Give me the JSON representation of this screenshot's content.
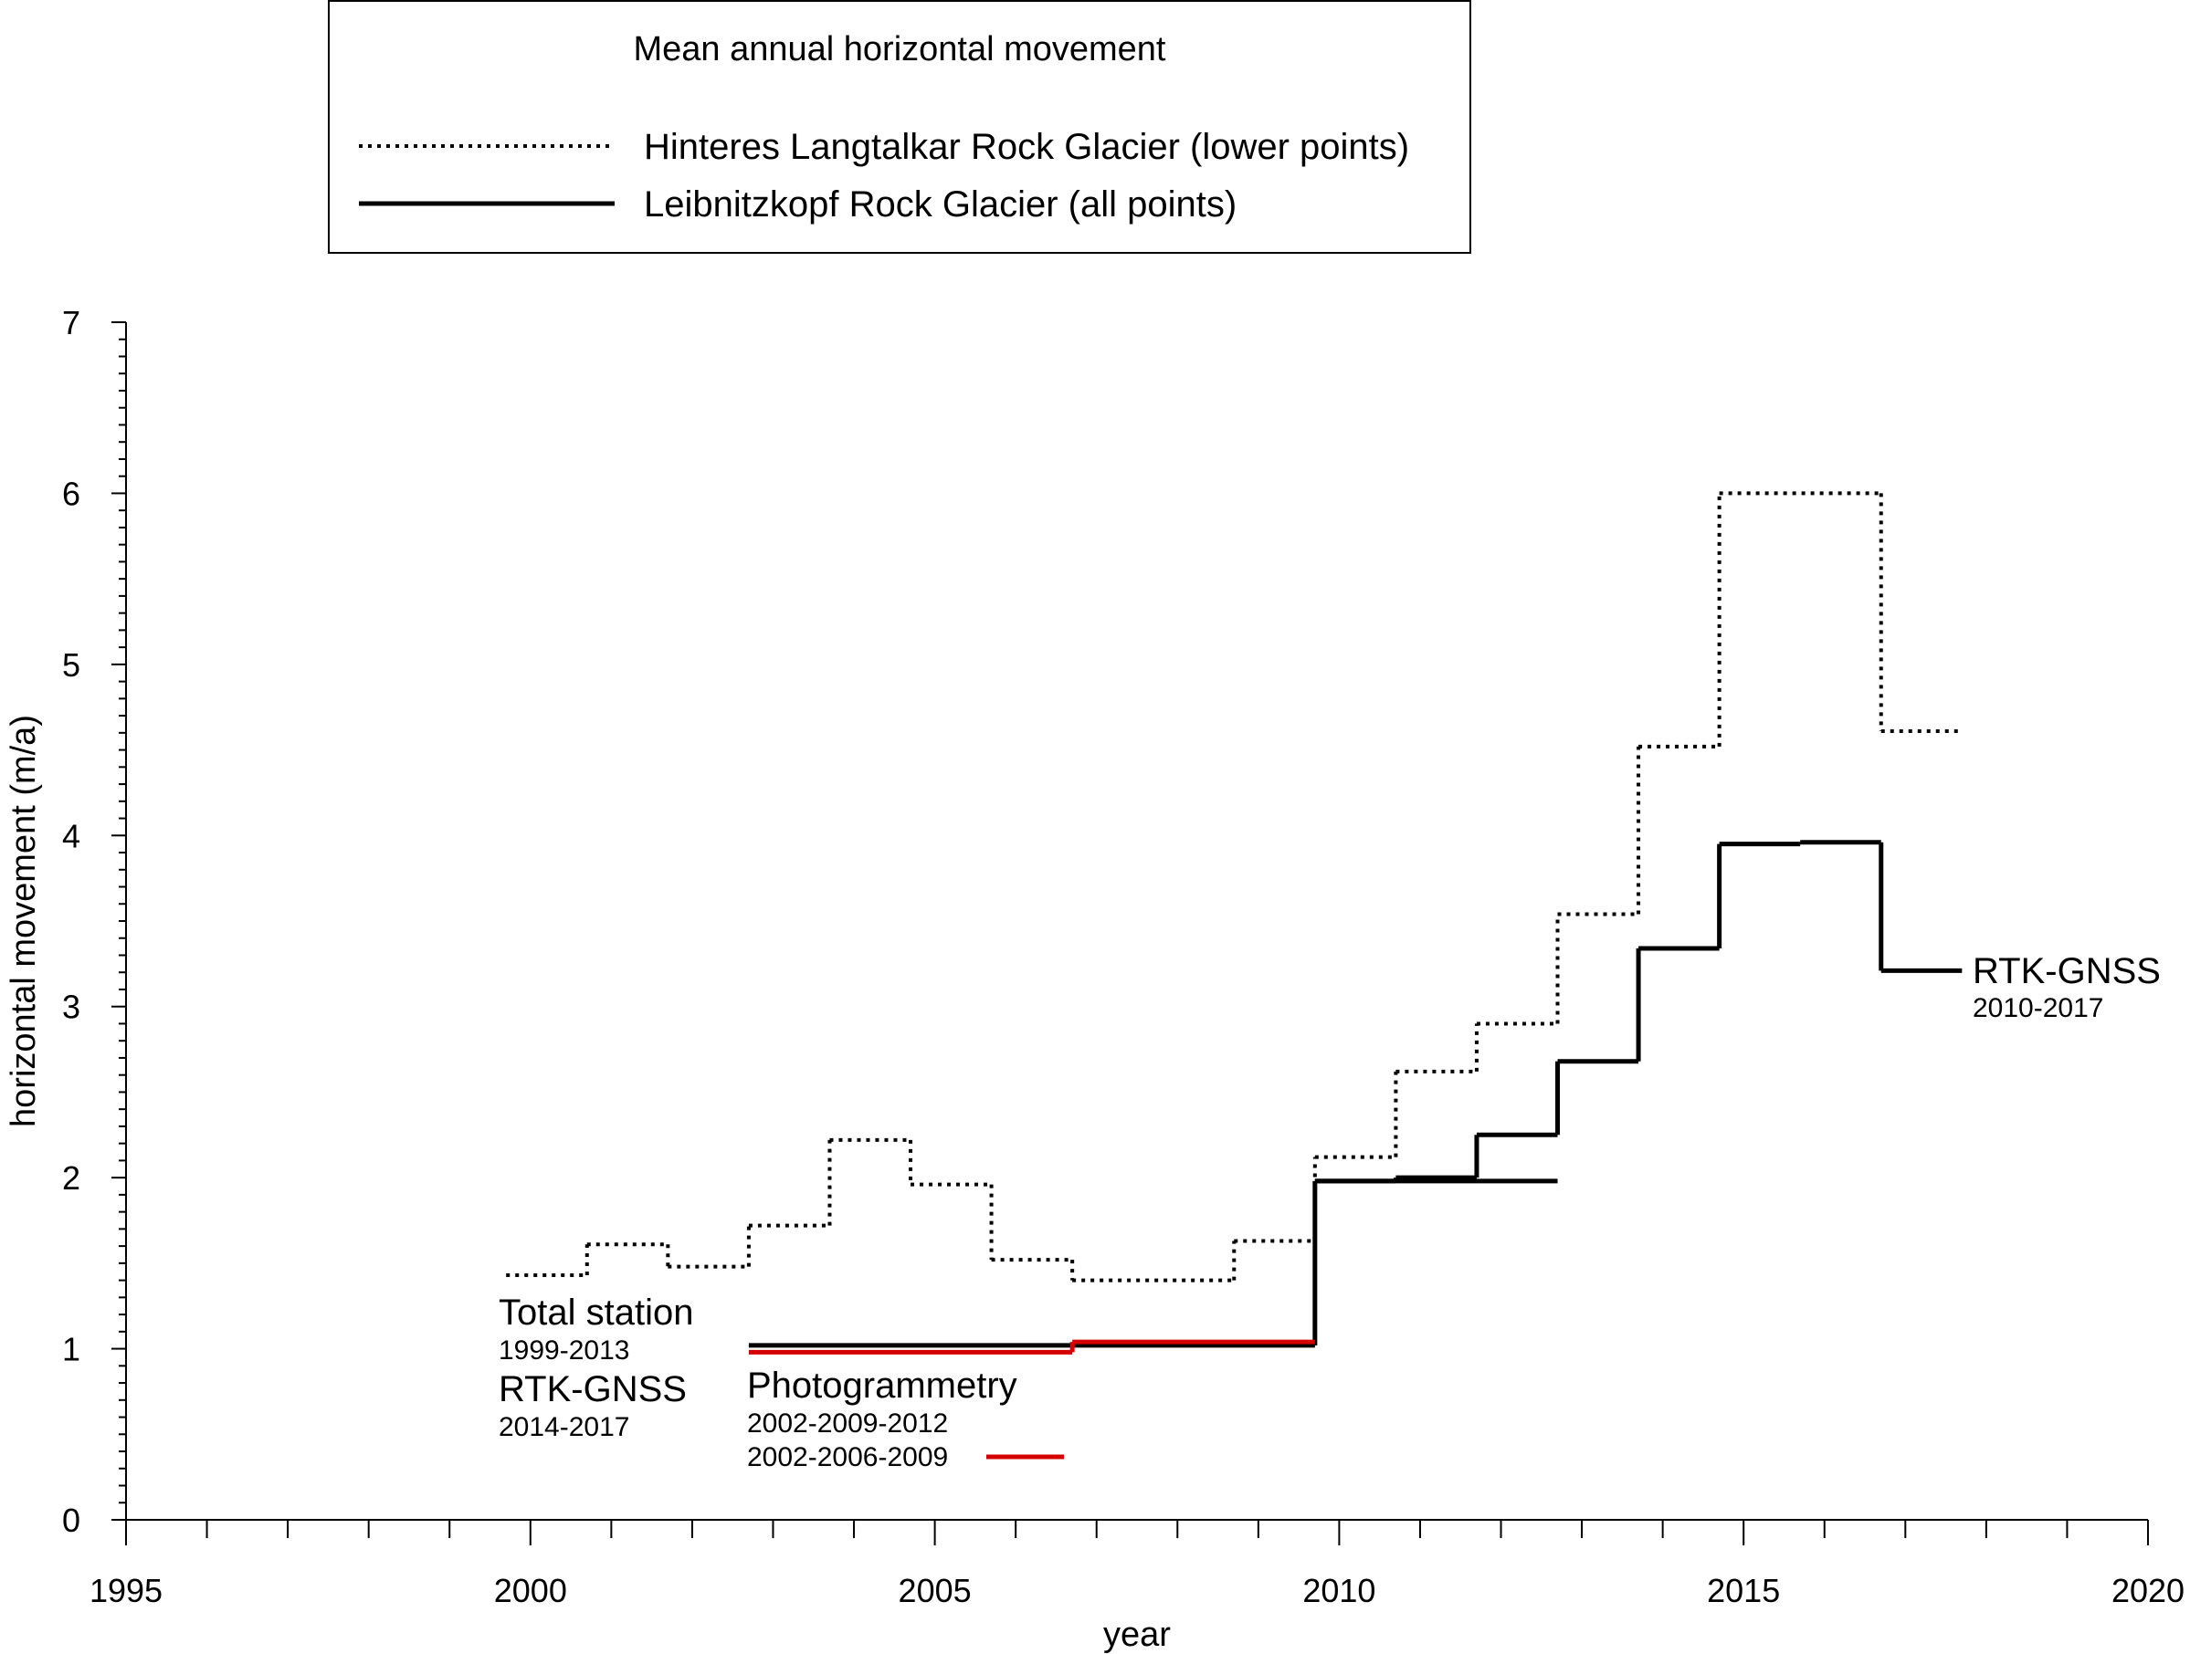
{
  "chart_data": {
    "type": "line",
    "title": "",
    "xlabel": "year",
    "ylabel": "horizontal movement (m/a)",
    "xlim": [
      1995,
      2020
    ],
    "ylim": [
      0,
      7
    ],
    "x_ticks": [
      "1995",
      "2000",
      "2005",
      "2010",
      "2015",
      "2020"
    ],
    "y_ticks": [
      "0",
      "1",
      "2",
      "3",
      "4",
      "5",
      "6",
      "7"
    ],
    "grid": false,
    "legend": {
      "placement": "top",
      "title": "Mean annual horizontal movement",
      "entries": [
        {
          "label": "Hinteres Langtalkar Rock Glacier (lower points)",
          "style": "dotted",
          "color": "#000000"
        },
        {
          "label": "Leibnitzkopf Rock Glacier (all points)",
          "style": "solid",
          "color": "#000000"
        }
      ]
    },
    "series": [
      {
        "name": "Hinteres Langtalkar Rock Glacier (lower points)",
        "style": "dotted",
        "color": "#000000",
        "segments": [
          {
            "x": [
              1999.7,
              2000.7
            ],
            "y": 1.43
          },
          {
            "x": [
              2000.7,
              2001.7
            ],
            "y": 1.61
          },
          {
            "x": [
              2001.7,
              2002.7
            ],
            "y": 1.48
          },
          {
            "x": [
              2002.7,
              2003.7
            ],
            "y": 1.72
          },
          {
            "x": [
              2003.7,
              2004.7
            ],
            "y": 2.22
          },
          {
            "x": [
              2004.7,
              2005.7
            ],
            "y": 1.96
          },
          {
            "x": [
              2005.7,
              2006.7
            ],
            "y": 1.52
          },
          {
            "x": [
              2006.7,
              2008.7
            ],
            "y": 1.4
          },
          {
            "x": [
              2008.7,
              2009.7
            ],
            "y": 1.63
          },
          {
            "x": [
              2009.7,
              2010.7
            ],
            "y": 2.12
          },
          {
            "x": [
              2010.7,
              2011.7
            ],
            "y": 2.62
          },
          {
            "x": [
              2011.7,
              2012.7
            ],
            "y": 2.9
          },
          {
            "x": [
              2012.7,
              2013.7
            ],
            "y": 3.54
          },
          {
            "x": [
              2013.7,
              2014.7
            ],
            "y": 4.52
          },
          {
            "x": [
              2014.7,
              2016.7
            ],
            "y": 6.0
          },
          {
            "x": [
              2016.7,
              2017.7
            ],
            "y": 4.61
          }
        ]
      },
      {
        "name": "Leibnitzkopf Rock Glacier (all points)",
        "style": "solid",
        "color": "#000000",
        "segments": [
          {
            "x": [
              2002.7,
              2009.7
            ],
            "y": 1.02
          },
          {
            "x": [
              2009.7,
              2012.7
            ],
            "y": 1.98
          },
          {
            "x": [
              2009.7,
              2010.7
            ],
            "y": 1.98
          },
          {
            "x": [
              2010.7,
              2011.7
            ],
            "y": 2.0
          },
          {
            "x": [
              2011.7,
              2012.7
            ],
            "y": 2.25
          },
          {
            "x": [
              2012.7,
              2013.7
            ],
            "y": 2.68
          },
          {
            "x": [
              2013.7,
              2014.7
            ],
            "y": 3.34
          },
          {
            "x": [
              2014.7,
              2015.7
            ],
            "y": 3.95
          },
          {
            "x": [
              2015.7,
              2016.7
            ],
            "y": 3.96
          },
          {
            "x": [
              2016.7,
              2017.7
            ],
            "y": 3.21
          }
        ]
      },
      {
        "name": "",
        "style": "solid",
        "color": "#d40000",
        "segments": [
          {
            "x": [
              2002.7,
              2006.7
            ],
            "y": 0.98
          },
          {
            "x": [
              2006.7,
              2009.7
            ],
            "y": 1.04
          }
        ]
      }
    ],
    "annotations": [
      {
        "text": "Total station",
        "size": "large"
      },
      {
        "text": "1999-2013",
        "size": "small"
      },
      {
        "text": "RTK-GNSS",
        "size": "large"
      },
      {
        "text": "2014-2017",
        "size": "small"
      },
      {
        "text": "Photogrammetry",
        "size": "large"
      },
      {
        "text": "2002-2009-2012",
        "size": "small"
      },
      {
        "text": "2002-2006-2009",
        "size": "small"
      },
      {
        "text": "RTK-GNSS",
        "size": "large"
      },
      {
        "text": "2010-2017",
        "size": "small"
      }
    ]
  }
}
